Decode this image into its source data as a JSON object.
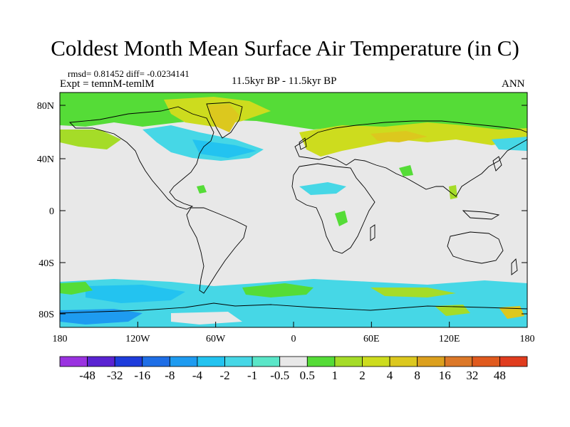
{
  "title": "Coldest Month Mean Surface Air Temperature (in C)",
  "stats": "rmsd= 0.81452 diff= -0.0234141",
  "experiment": "Expt = temnM-temlM",
  "period": "11.5kyr BP - 11.5kyr BP",
  "season": "ANN",
  "axes": {
    "x_ticks": [
      "180",
      "120W",
      "60W",
      "0",
      "60E",
      "120E",
      "180"
    ],
    "y_ticks": [
      "80N",
      "40N",
      "0",
      "40S",
      "80S"
    ]
  },
  "colorbar": {
    "labels": [
      "-48",
      "-32",
      "-16",
      "-8",
      "-4",
      "-2",
      "-1",
      "-0.5",
      "0.5",
      "1",
      "2",
      "4",
      "8",
      "16",
      "32",
      "48"
    ],
    "colors": [
      "#9a32e0",
      "#5a23d2",
      "#1e3cdc",
      "#1e6ee6",
      "#1e9bf0",
      "#23c3f0",
      "#46d7e6",
      "#5ae6c8",
      "#e8e8e8",
      "#55dc37",
      "#a5dc28",
      "#cddc1e",
      "#dcc81e",
      "#dca01e",
      "#dc7828",
      "#e05a1e",
      "#e03c1e"
    ]
  },
  "palette": {
    "neutral": "#e8e8e8",
    "light_cyan": "#46d7e6",
    "cyan": "#23c3f0",
    "blue": "#1e9bf0",
    "green": "#55dc37",
    "yellow_green": "#a5dc28",
    "olive": "#cddc1e",
    "gold": "#dcc81e"
  }
}
